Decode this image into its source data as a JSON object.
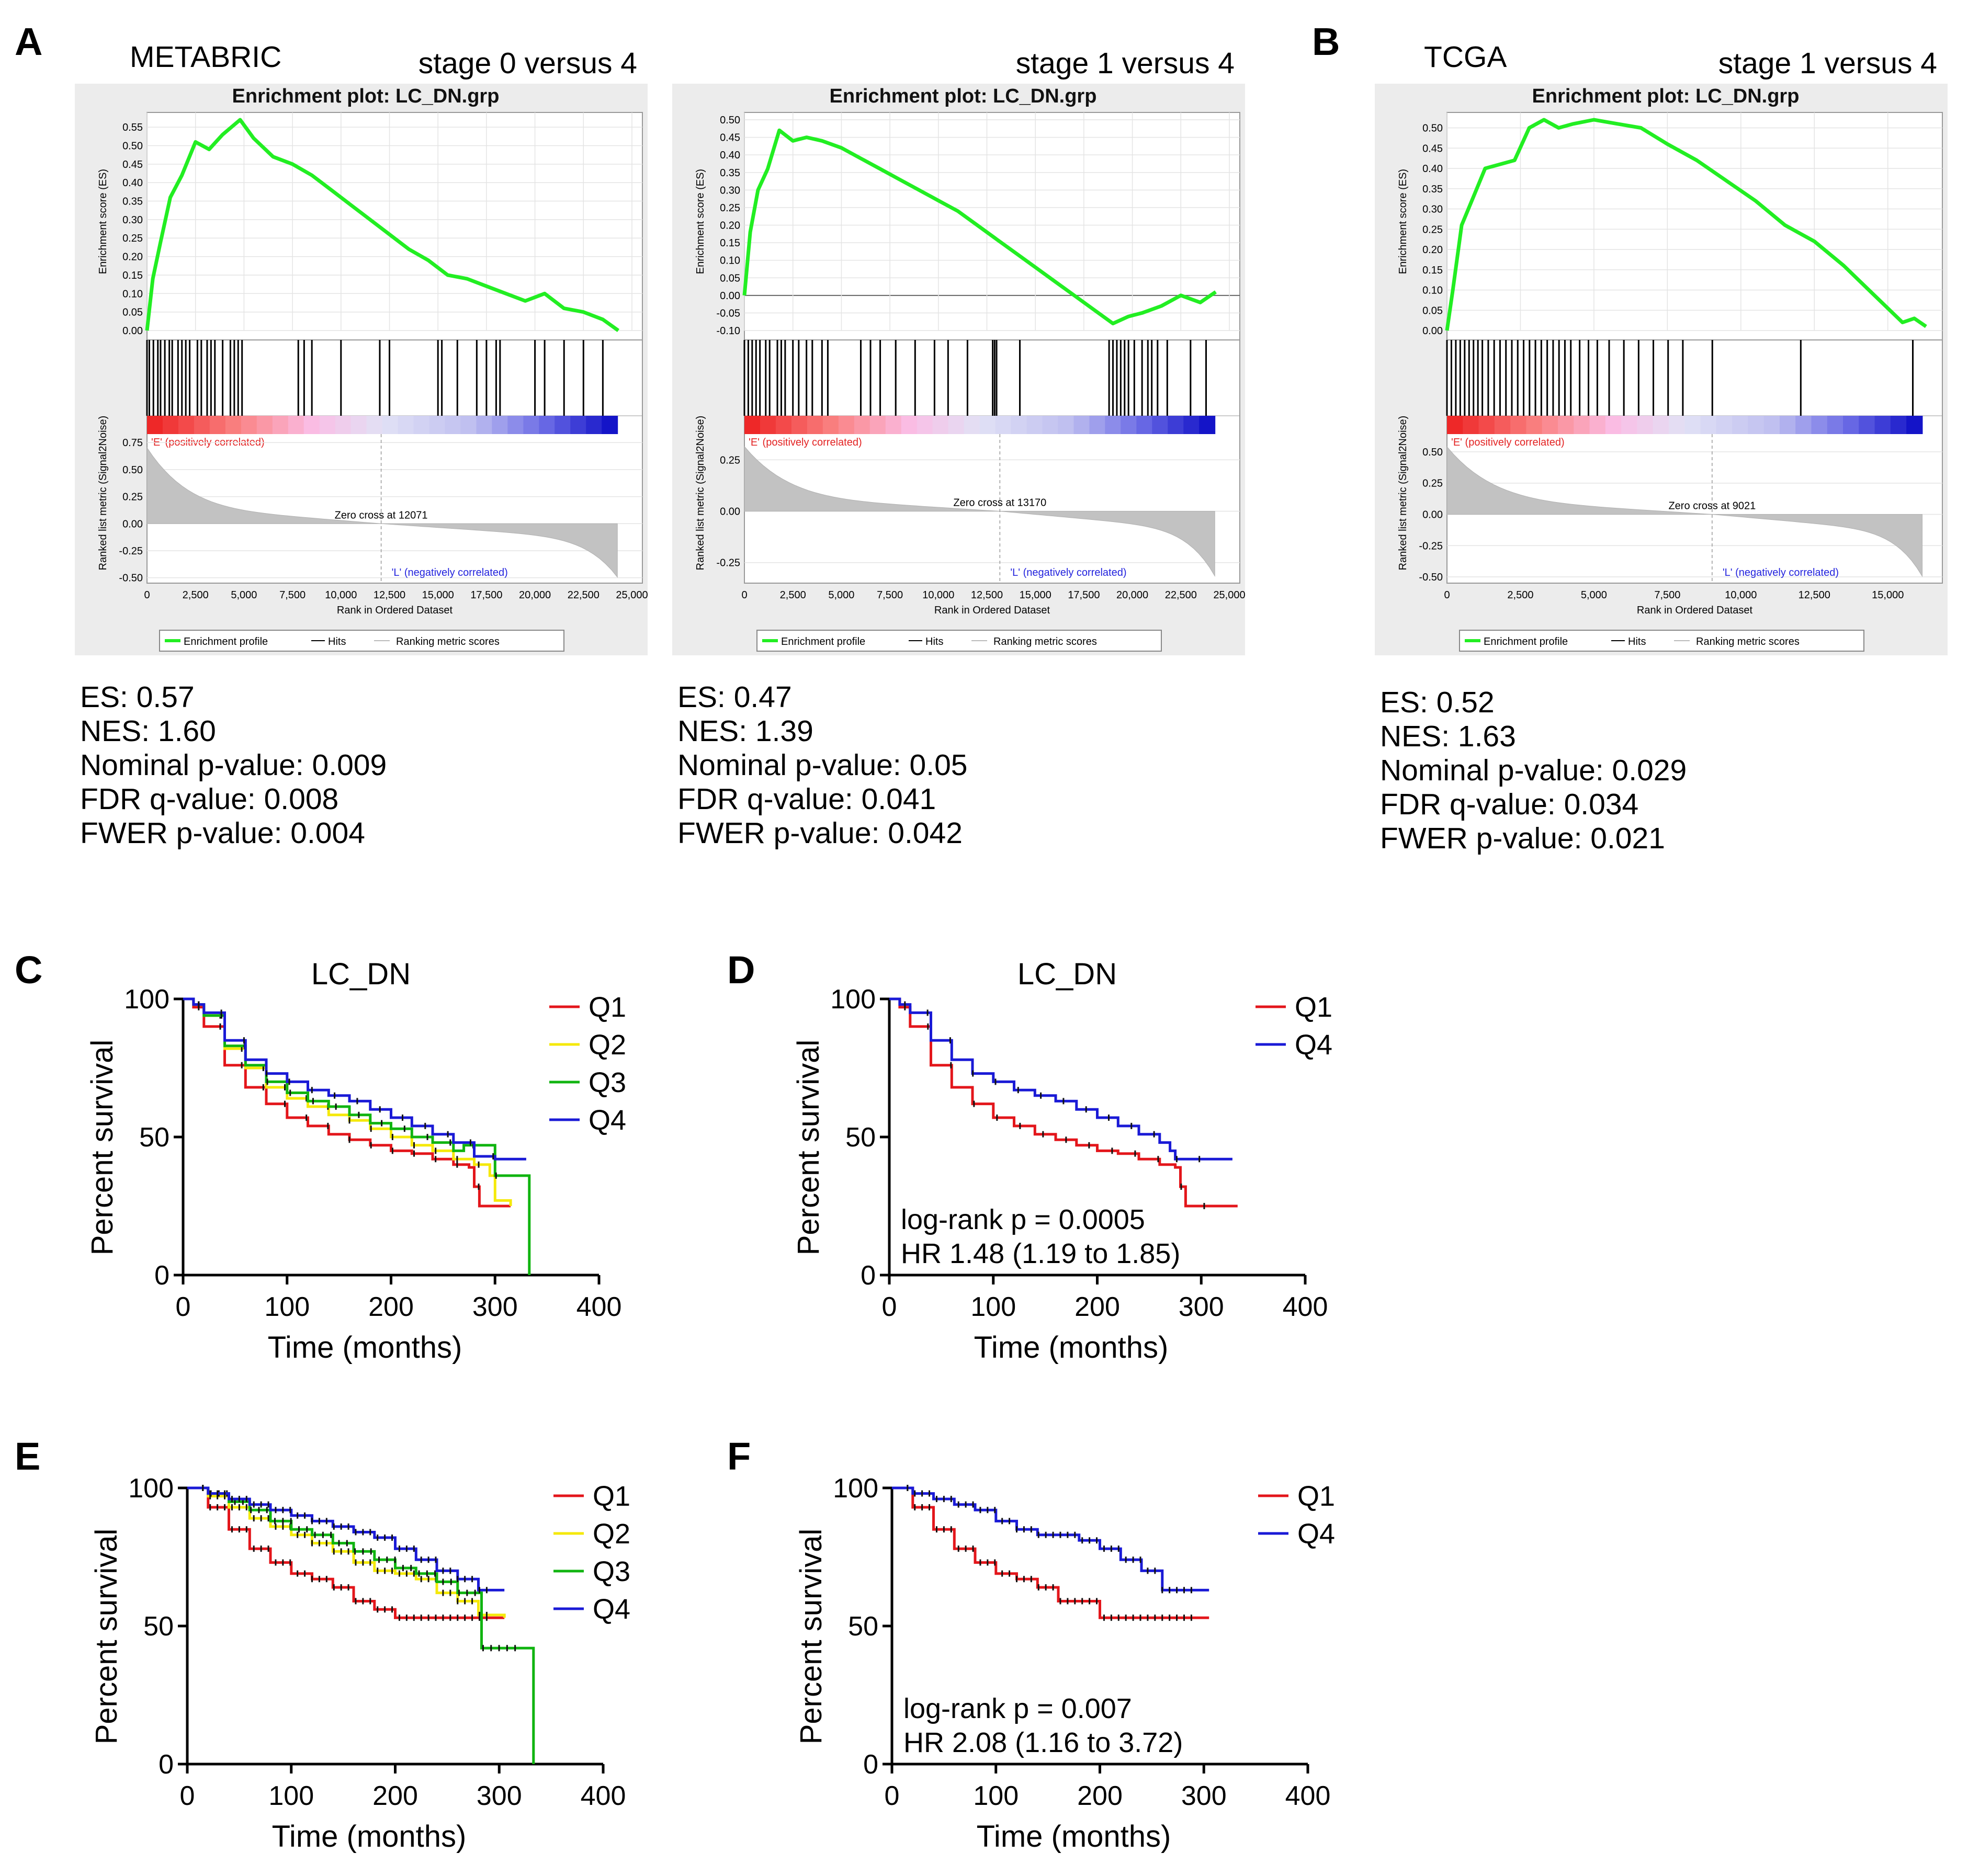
{
  "panels": {
    "A": "A",
    "B": "B",
    "C": "C",
    "D": "D",
    "E": "E",
    "F": "F"
  },
  "gsea": {
    "dataset_metabric": "METABRIC",
    "dataset_tcga": "TCGA",
    "plots": [
      {
        "id": "g1",
        "comparison": "stage 0 versus 4",
        "title": "Enrichment plot: LC_DN.grp",
        "es_ticks": [
          "0.55",
          "0.50",
          "0.45",
          "0.40",
          "0.35",
          "0.30",
          "0.25",
          "0.20",
          "0.15",
          "0.10",
          "0.05",
          "0.00"
        ],
        "es_ylabel": "Enrichment score (ES)",
        "metric_ticks": [
          "0.75",
          "0.50",
          "0.25",
          "0.00",
          "-0.25",
          "-0.50"
        ],
        "metric_ylabel": "Ranked list metric (Signal2Noise)",
        "x_ticks": [
          "0",
          "2,500",
          "5,000",
          "7,500",
          "10,000",
          "12,500",
          "15,000",
          "17,500",
          "20,000",
          "22,500",
          "25,000"
        ],
        "xlabel": "Rank in Ordered Dataset",
        "pos_label": "'E' (positively correlated)",
        "neg_label": "'L' (negatively correlated)",
        "zero_cross": "Zero cross at 12071",
        "legend": [
          "Enrichment profile",
          "Hits",
          "Ranking metric scores"
        ],
        "stats": [
          "ES: 0.57",
          "NES: 1.60",
          "Nominal p-value: 0.009",
          "FDR q-value: 0.008",
          "FWER p-value: 0.004"
        ]
      },
      {
        "id": "g2",
        "comparison": "stage 1 versus 4",
        "title": "Enrichment plot: LC_DN.grp",
        "es_ticks": [
          "0.50",
          "0.45",
          "0.40",
          "0.35",
          "0.30",
          "0.25",
          "0.20",
          "0.15",
          "0.10",
          "0.05",
          "0.00",
          "-0.05",
          "-0.10"
        ],
        "es_ylabel": "Enrichment score (ES)",
        "metric_ticks": [
          "0.25",
          "0.00",
          "-0.25"
        ],
        "metric_ylabel": "Ranked list metric (Signal2Noise)",
        "x_ticks": [
          "0",
          "2,500",
          "5,000",
          "7,500",
          "10,000",
          "12,500",
          "15,000",
          "17,500",
          "20,000",
          "22,500",
          "25,000"
        ],
        "xlabel": "Rank in Ordered Dataset",
        "pos_label": "'E' (positively correlated)",
        "neg_label": "'L' (negatively correlated)",
        "zero_cross": "Zero cross at 13170",
        "legend": [
          "Enrichment profile",
          "Hits",
          "Ranking metric scores"
        ],
        "stats": [
          "ES: 0.47",
          "NES: 1.39",
          "Nominal p-value: 0.05",
          "FDR q-value: 0.041",
          "FWER p-value: 0.042"
        ]
      },
      {
        "id": "g3",
        "comparison": "stage 1 versus 4",
        "title": "Enrichment plot: LC_DN.grp",
        "es_ticks": [
          "0.50",
          "0.45",
          "0.40",
          "0.35",
          "0.30",
          "0.25",
          "0.20",
          "0.15",
          "0.10",
          "0.05",
          "0.00"
        ],
        "es_ylabel": "Enrichment score (ES)",
        "metric_ticks": [
          "0.50",
          "0.25",
          "0.00",
          "-0.25",
          "-0.50"
        ],
        "metric_ylabel": "Ranked list metric (Signal2Noise)",
        "x_ticks": [
          "0",
          "2,500",
          "5,000",
          "7,500",
          "10,000",
          "12,500",
          "15,000"
        ],
        "xlabel": "Rank in Ordered Dataset",
        "pos_label": "'E' (positively correlated)",
        "neg_label": "'L' (negatively correlated)",
        "zero_cross": "Zero cross at 9021",
        "legend": [
          "Enrichment profile",
          "Hits",
          "Ranking metric scores"
        ],
        "stats": [
          "ES: 0.52",
          "NES: 1.63",
          "Nominal p-value: 0.029",
          "FDR q-value: 0.034",
          "FWER p-value: 0.021"
        ]
      }
    ]
  },
  "survival": {
    "title_C": "LC_DN",
    "title_D": "LC_DN",
    "xlabel": "Time (months)",
    "ylabel": "Percent survival",
    "x_ticks": [
      "0",
      "100",
      "200",
      "300",
      "400"
    ],
    "y_ticks": [
      "100",
      "50",
      "0"
    ],
    "legend_4": [
      "Q1",
      "Q2",
      "Q3",
      "Q4"
    ],
    "legend_2": [
      "Q1",
      "Q4"
    ],
    "stats_D": [
      "log-rank p = 0.0005",
      "HR 1.48 (1.19 to 1.85)"
    ],
    "stats_F": [
      "log-rank p = 0.007",
      "HR 2.08 (1.16 to 3.72)"
    ]
  },
  "colors": {
    "Q1": "#e3161b",
    "Q2": "#f5e90a",
    "Q3": "#10b410",
    "Q4": "#1a1ad6",
    "enrichment": "#22ee22"
  },
  "chart_data": [
    {
      "type": "line",
      "panel": "A (left)",
      "title": "Enrichment plot: LC_DN.grp",
      "subtitle": "stage 0 versus 4",
      "xlabel": "Rank in Ordered Dataset",
      "ylabel": "Enrichment score (ES)",
      "xlim": [
        0,
        25000
      ],
      "ylim": [
        0,
        0.57
      ],
      "series": [
        {
          "name": "Enrichment profile",
          "x": [
            0,
            300,
            700,
            1200,
            1800,
            2500,
            3200,
            3900,
            4800,
            5500,
            6500,
            7500,
            8500,
            9500,
            10500,
            11500,
            12500,
            13500,
            14500,
            15500,
            16500,
            17500,
            18500,
            19500,
            20500,
            21500,
            22500,
            23500,
            24300
          ],
          "y": [
            0.0,
            0.14,
            0.24,
            0.36,
            0.42,
            0.51,
            0.49,
            0.53,
            0.57,
            0.52,
            0.47,
            0.45,
            0.42,
            0.38,
            0.34,
            0.3,
            0.26,
            0.22,
            0.19,
            0.15,
            0.14,
            0.12,
            0.1,
            0.08,
            0.1,
            0.06,
            0.05,
            0.03,
            0.0
          ]
        }
      ],
      "zero_cross": 12071
    },
    {
      "type": "line",
      "panel": "A (right)",
      "title": "Enrichment plot: LC_DN.grp",
      "subtitle": "stage 1 versus 4",
      "xlabel": "Rank in Ordered Dataset",
      "ylabel": "Enrichment score (ES)",
      "xlim": [
        0,
        25000
      ],
      "ylim": [
        -0.1,
        0.5
      ],
      "series": [
        {
          "name": "Enrichment profile",
          "x": [
            0,
            300,
            700,
            1200,
            1800,
            2500,
            3200,
            4000,
            5000,
            6000,
            7000,
            8000,
            9000,
            10000,
            11000,
            12000,
            13000,
            14000,
            15000,
            16000,
            17000,
            18000,
            19000,
            19800,
            20500,
            21500,
            22500,
            23500,
            24300
          ],
          "y": [
            0.0,
            0.18,
            0.3,
            0.36,
            0.47,
            0.44,
            0.45,
            0.44,
            0.42,
            0.39,
            0.36,
            0.33,
            0.3,
            0.27,
            0.24,
            0.2,
            0.16,
            0.12,
            0.08,
            0.04,
            0.0,
            -0.04,
            -0.08,
            -0.06,
            -0.05,
            -0.03,
            0.0,
            -0.02,
            0.01
          ]
        }
      ],
      "zero_cross": 13170
    },
    {
      "type": "line",
      "panel": "B",
      "title": "Enrichment plot: LC_DN.grp",
      "subtitle": "stage 1 versus 4",
      "xlabel": "Rank in Ordered Dataset",
      "ylabel": "Enrichment score (ES)",
      "xlim": [
        0,
        16500
      ],
      "ylim": [
        0,
        0.52
      ],
      "series": [
        {
          "name": "Enrichment profile",
          "x": [
            0,
            200,
            500,
            900,
            1300,
            1800,
            2300,
            2800,
            3300,
            3800,
            4300,
            5000,
            5800,
            6600,
            7500,
            8500,
            9500,
            10500,
            11500,
            12500,
            13500,
            14500,
            15500,
            15900,
            16300
          ],
          "y": [
            0.0,
            0.1,
            0.26,
            0.33,
            0.4,
            0.41,
            0.42,
            0.5,
            0.52,
            0.5,
            0.51,
            0.52,
            0.51,
            0.5,
            0.46,
            0.42,
            0.37,
            0.32,
            0.26,
            0.22,
            0.16,
            0.09,
            0.02,
            0.03,
            0.01
          ]
        }
      ],
      "zero_cross": 9021
    },
    {
      "type": "line",
      "panel": "C",
      "title": "LC_DN",
      "xlabel": "Time (months)",
      "ylabel": "Percent survival",
      "xlim": [
        0,
        400
      ],
      "ylim": [
        0,
        100
      ],
      "series": [
        {
          "name": "Q1",
          "x": [
            0,
            10,
            20,
            40,
            60,
            80,
            100,
            120,
            140,
            160,
            180,
            200,
            220,
            240,
            260,
            275,
            280,
            285,
            300,
            315
          ],
          "y": [
            100,
            97,
            90,
            76,
            68,
            62,
            57,
            54,
            51,
            49,
            47,
            45,
            44,
            42,
            40,
            39,
            32,
            25,
            25,
            25
          ]
        },
        {
          "name": "Q2",
          "x": [
            0,
            10,
            20,
            40,
            60,
            80,
            100,
            120,
            140,
            160,
            180,
            200,
            220,
            240,
            260,
            280,
            290,
            295,
            300,
            315
          ],
          "y": [
            100,
            98,
            94,
            82,
            75,
            68,
            64,
            61,
            58,
            56,
            53,
            50,
            47,
            45,
            42,
            40,
            40,
            36,
            27,
            25
          ]
        },
        {
          "name": "Q3",
          "x": [
            0,
            10,
            20,
            40,
            60,
            80,
            100,
            120,
            140,
            160,
            180,
            200,
            220,
            240,
            260,
            270,
            280,
            300,
            320,
            333,
            333
          ],
          "y": [
            100,
            98,
            94,
            83,
            76,
            70,
            66,
            63,
            61,
            58,
            55,
            53,
            50,
            48,
            45,
            47,
            47,
            36,
            36,
            36,
            0
          ]
        },
        {
          "name": "Q4",
          "x": [
            0,
            10,
            20,
            40,
            60,
            80,
            100,
            120,
            140,
            160,
            180,
            200,
            220,
            240,
            260,
            280,
            300,
            330
          ],
          "y": [
            100,
            98,
            95,
            85,
            78,
            73,
            70,
            67,
            65,
            63,
            60,
            57,
            54,
            51,
            48,
            43,
            42,
            42
          ]
        }
      ]
    },
    {
      "type": "line",
      "panel": "D",
      "title": "LC_DN",
      "xlabel": "Time (months)",
      "ylabel": "Percent survival",
      "xlim": [
        0,
        400
      ],
      "ylim": [
        0,
        100
      ],
      "series": [
        {
          "name": "Q1",
          "x": [
            0,
            10,
            20,
            40,
            60,
            80,
            100,
            120,
            140,
            160,
            180,
            200,
            220,
            240,
            260,
            275,
            280,
            285,
            300,
            335
          ],
          "y": [
            100,
            97,
            90,
            76,
            68,
            62,
            57,
            54,
            51,
            49,
            47,
            45,
            44,
            42,
            40,
            39,
            32,
            25,
            25,
            25
          ]
        },
        {
          "name": "Q4",
          "x": [
            0,
            10,
            20,
            40,
            60,
            80,
            100,
            120,
            140,
            160,
            180,
            200,
            220,
            240,
            260,
            270,
            275,
            280,
            330
          ],
          "y": [
            100,
            98,
            95,
            85,
            78,
            73,
            70,
            67,
            65,
            63,
            60,
            57,
            54,
            51,
            48,
            45,
            42,
            42,
            42
          ]
        }
      ],
      "annotations": [
        "log-rank p = 0.0005",
        "HR 1.48 (1.19 to 1.85)"
      ]
    },
    {
      "type": "line",
      "panel": "E",
      "xlabel": "Time (months)",
      "ylabel": "Percent survival",
      "xlim": [
        0,
        400
      ],
      "ylim": [
        0,
        100
      ],
      "series": [
        {
          "name": "Q1",
          "x": [
            0,
            20,
            40,
            60,
            80,
            100,
            120,
            140,
            160,
            180,
            200,
            220,
            240,
            260,
            280,
            305
          ],
          "y": [
            100,
            93,
            85,
            78,
            73,
            69,
            67,
            64,
            59,
            56,
            53,
            53,
            53,
            53,
            53,
            53
          ]
        },
        {
          "name": "Q2",
          "x": [
            0,
            20,
            40,
            60,
            80,
            100,
            120,
            140,
            160,
            180,
            200,
            220,
            240,
            260,
            280,
            305
          ],
          "y": [
            100,
            97,
            93,
            89,
            86,
            83,
            80,
            77,
            73,
            70,
            69,
            67,
            62,
            59,
            54,
            53
          ]
        },
        {
          "name": "Q3",
          "x": [
            0,
            20,
            40,
            60,
            80,
            100,
            120,
            140,
            160,
            180,
            200,
            220,
            240,
            260,
            280,
            283,
            330,
            333
          ],
          "y": [
            100,
            98,
            95,
            92,
            88,
            85,
            83,
            80,
            77,
            74,
            71,
            69,
            66,
            62,
            62,
            42,
            42,
            0
          ]
        },
        {
          "name": "Q4",
          "x": [
            0,
            20,
            40,
            60,
            80,
            100,
            120,
            140,
            160,
            180,
            200,
            220,
            240,
            260,
            280,
            305
          ],
          "y": [
            100,
            98,
            96,
            94,
            92,
            90,
            88,
            86,
            84,
            82,
            78,
            74,
            70,
            67,
            63,
            63
          ]
        }
      ]
    },
    {
      "type": "line",
      "panel": "F",
      "xlabel": "Time (months)",
      "ylabel": "Percent survival",
      "xlim": [
        0,
        400
      ],
      "ylim": [
        0,
        100
      ],
      "series": [
        {
          "name": "Q1",
          "x": [
            0,
            20,
            40,
            60,
            80,
            100,
            120,
            140,
            160,
            180,
            195,
            200,
            250,
            305
          ],
          "y": [
            100,
            93,
            85,
            78,
            73,
            69,
            67,
            64,
            59,
            59,
            59,
            53,
            53,
            53
          ]
        },
        {
          "name": "Q4",
          "x": [
            0,
            20,
            40,
            60,
            80,
            100,
            120,
            140,
            160,
            180,
            200,
            220,
            240,
            260,
            280,
            305
          ],
          "y": [
            100,
            98,
            96,
            94,
            92,
            88,
            85,
            83,
            83,
            81,
            78,
            74,
            70,
            63,
            63,
            63
          ]
        }
      ],
      "annotations": [
        "log-rank p = 0.007",
        "HR 2.08 (1.16 to 3.72)"
      ]
    }
  ]
}
